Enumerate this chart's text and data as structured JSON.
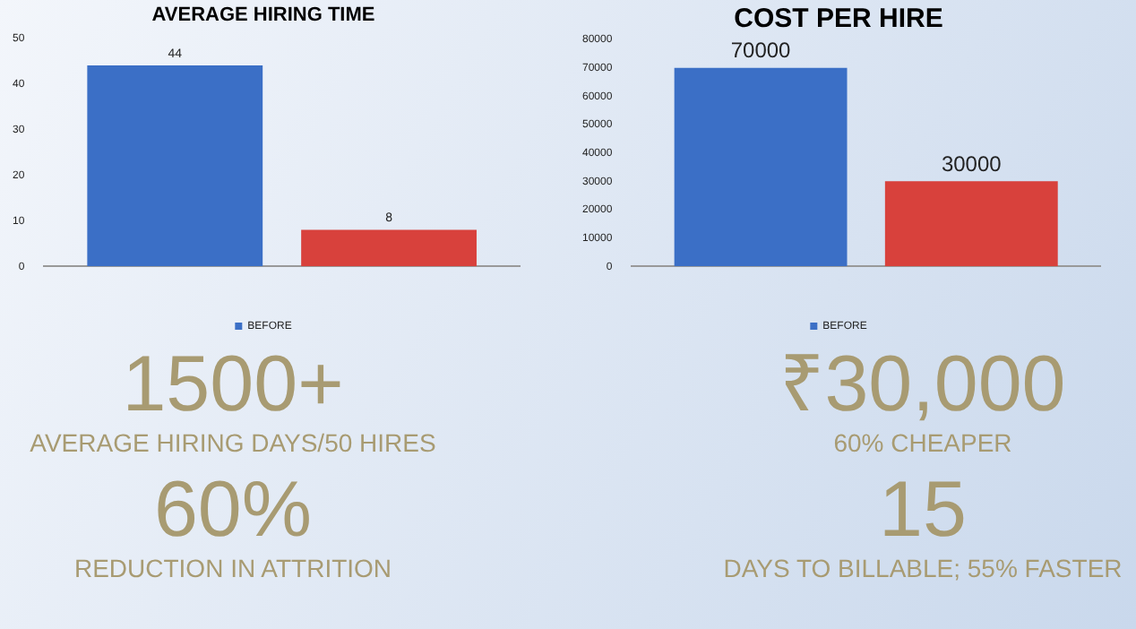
{
  "chart_data": [
    {
      "type": "bar",
      "title": "AVERAGE HIRING TIME",
      "categories": [
        null
      ],
      "series": [
        {
          "name": "BEFORE",
          "color": "#3b6fc6",
          "values": [
            44
          ]
        },
        {
          "color": "#d8413c",
          "values": [
            8
          ]
        }
      ],
      "ylim": [
        0,
        50
      ],
      "yticks": [
        0,
        10,
        20,
        30,
        40,
        50
      ],
      "grid": false,
      "legend": "bottom",
      "data_labels": true
    },
    {
      "type": "bar",
      "title": "COST PER HIRE",
      "categories": [
        null
      ],
      "series": [
        {
          "name": "BEFORE",
          "color": "#3b6fc6",
          "values": [
            70000
          ]
        },
        {
          "color": "#d8413c",
          "values": [
            30000
          ]
        }
      ],
      "ylim": [
        0,
        80000
      ],
      "yticks": [
        0,
        10000,
        20000,
        30000,
        40000,
        50000,
        60000,
        70000,
        80000
      ],
      "grid": false,
      "legend": "bottom",
      "data_labels": true
    },
    {
      "type": "other",
      "annotations": [
        "1500+",
        "AVERAGE HIRING DAYS/50 HIRES",
        "60%",
        "REDUCTION IN ATTRITION"
      ]
    },
    {
      "type": "other",
      "annotations": [
        "₹30,000",
        "60% CHEAPER",
        "15",
        "DAYS TO BILLABLE; 55% FASTER"
      ]
    }
  ]
}
